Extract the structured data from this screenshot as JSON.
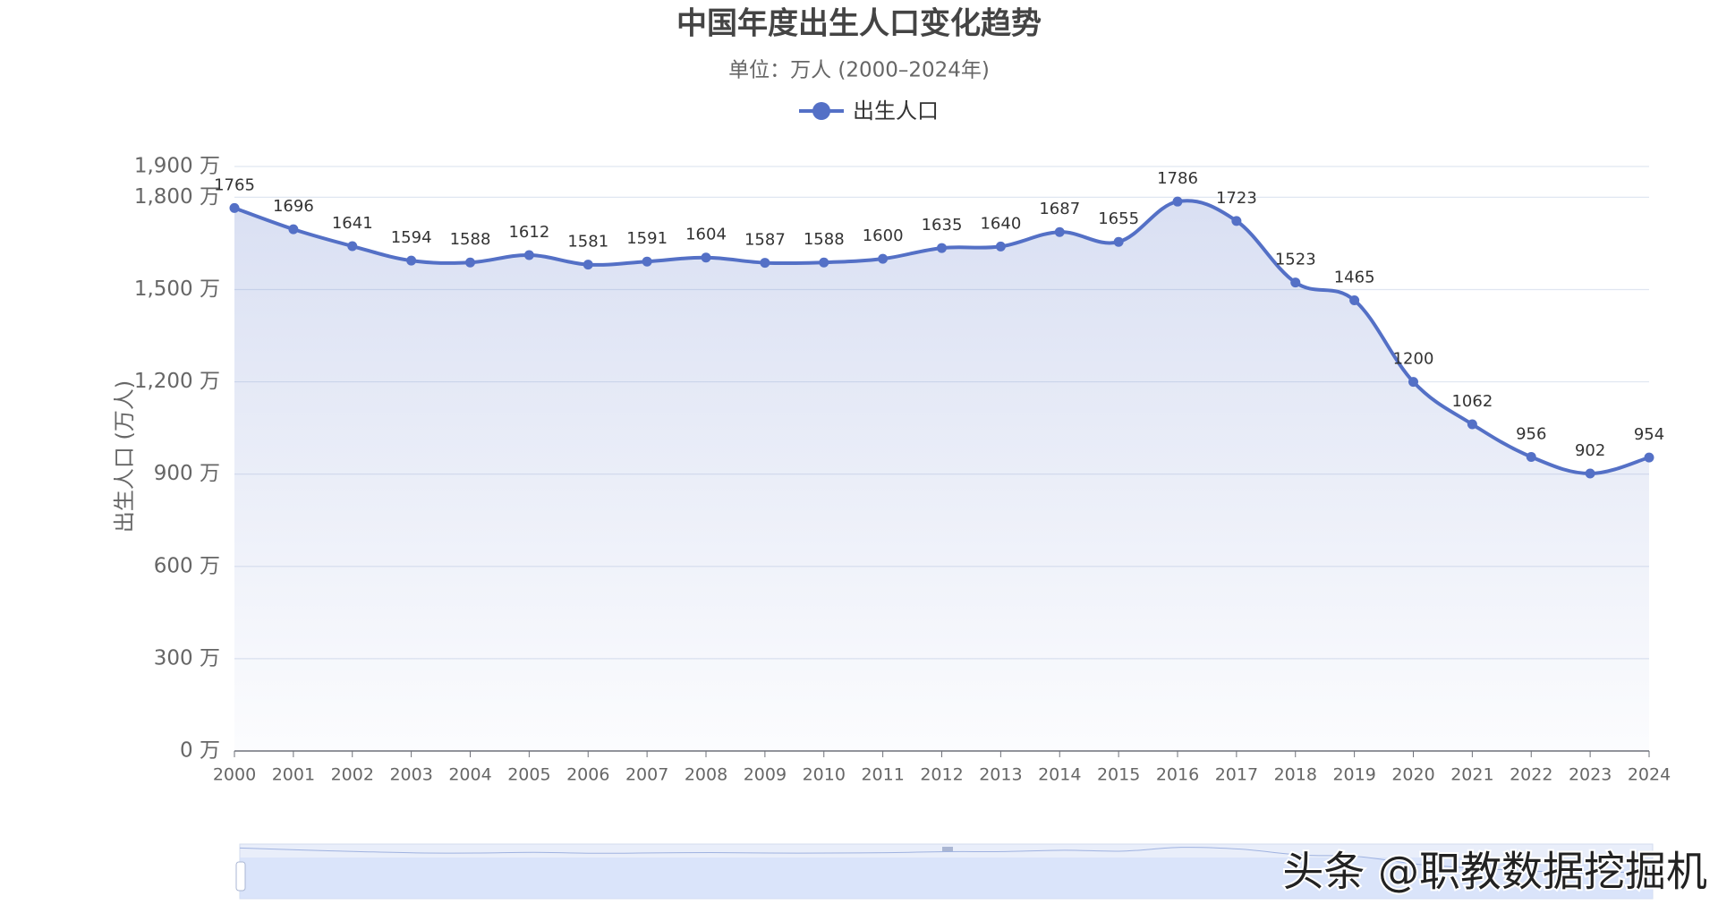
{
  "chart_data": {
    "type": "line",
    "title": "中国年度出生人口变化趋势",
    "subtitle": "单位：万人 (2000–2024年)",
    "y_label": "出生人口 (万人)",
    "categories": [
      "2000",
      "2001",
      "2002",
      "2003",
      "2004",
      "2005",
      "2006",
      "2007",
      "2008",
      "2009",
      "2010",
      "2011",
      "2012",
      "2013",
      "2014",
      "2015",
      "2016",
      "2017",
      "2018",
      "2019",
      "2020",
      "2021",
      "2022",
      "2023",
      "2024"
    ],
    "series": [
      {
        "name": "出生人口",
        "color": "#5470c6",
        "values": [
          1765,
          1696,
          1641,
          1594,
          1588,
          1612,
          1581,
          1591,
          1604,
          1587,
          1588,
          1600,
          1635,
          1640,
          1687,
          1655,
          1786,
          1723,
          1523,
          1465,
          1200,
          1062,
          956,
          902,
          954
        ]
      }
    ],
    "ylim": [
      0,
      1900
    ],
    "yticks": [
      {
        "value": 0,
        "label": "0 万"
      },
      {
        "value": 300,
        "label": "300 万"
      },
      {
        "value": 600,
        "label": "600 万"
      },
      {
        "value": 900,
        "label": "900 万"
      },
      {
        "value": 1200,
        "label": "1,200 万"
      },
      {
        "value": 1500,
        "label": "1,500 万"
      },
      {
        "value": 1800,
        "label": "1,800 万"
      },
      {
        "value": 1900,
        "label": "1,900 万"
      }
    ],
    "grid": true,
    "legend": "top",
    "watermark": "头条 @职教数据挖掘机"
  }
}
